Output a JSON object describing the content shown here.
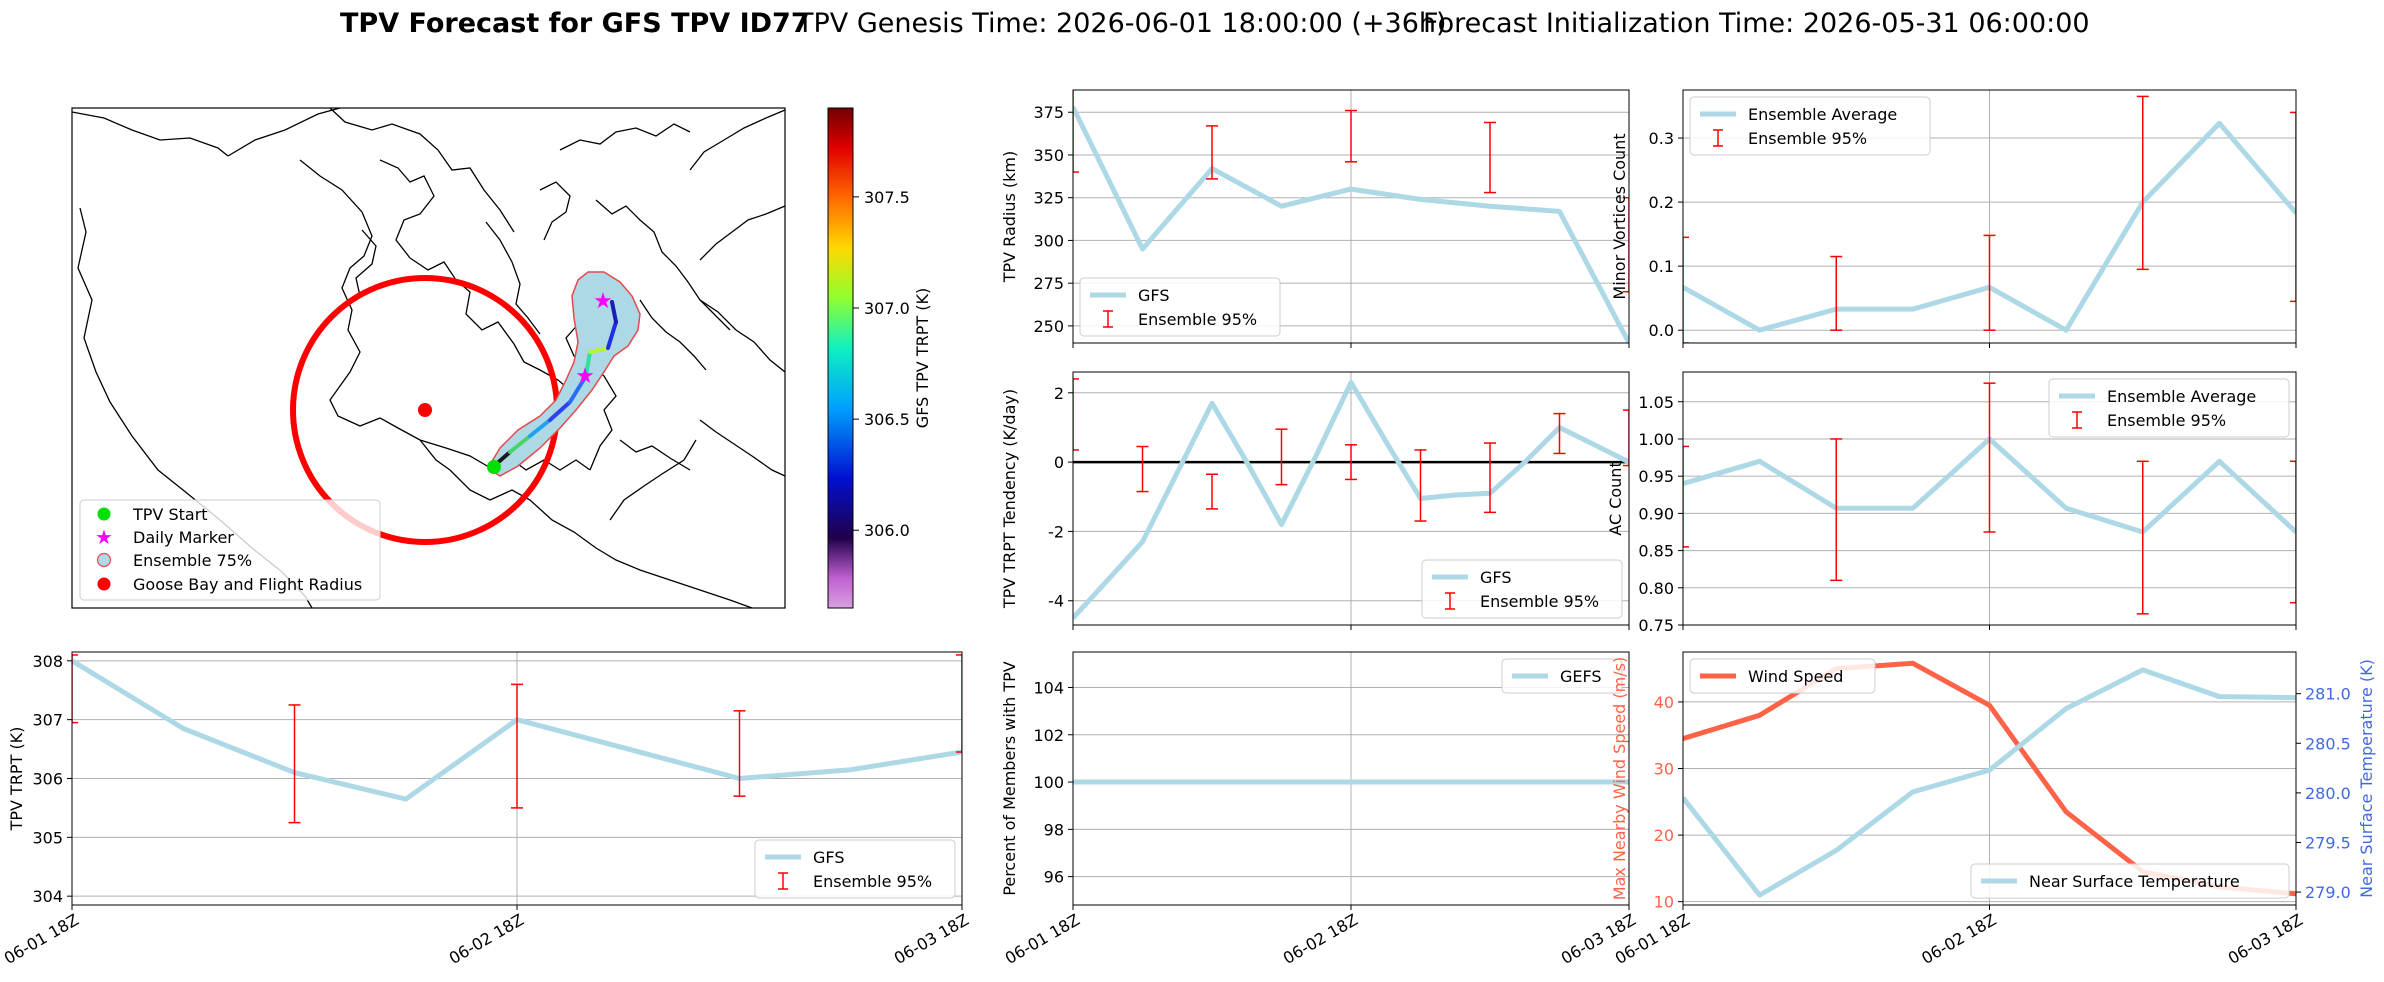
{
  "figure": {
    "title_bold": "TPV Forecast for GFS TPV ID77",
    "title_genesis": "TPV Genesis Time: 2026-06-01 18:00:00 (+36h)",
    "title_init": "Forecast Initialization Time: 2026-05-31 06:00:00"
  },
  "colors": {
    "gfs": "#add8e6",
    "ensemble": "#ff0000",
    "wind": "#ff6347",
    "temp_axis": "#4169e1",
    "grid": "#b0b0b0"
  },
  "map": {
    "legend": [
      "TPV Start",
      "Daily Marker",
      "Ensemble 75%",
      "Goose Bay and Flight Radius"
    ],
    "colorbar": {
      "label": "GFS TPV TRPT (K)",
      "min": 305.65,
      "max": 307.9,
      "ticks": [
        "306.0",
        "306.5",
        "307.0",
        "307.5"
      ],
      "tick_values": [
        306.0,
        306.5,
        307.0,
        307.5
      ]
    }
  },
  "chart_data": [
    {
      "id": "radius",
      "type": "line",
      "ylabel": "TPV Radius (km)",
      "x": [
        "2026-06-01 18Z",
        "2026-06-02 00Z",
        "2026-06-02 06Z",
        "2026-06-02 12Z",
        "2026-06-02 18Z",
        "2026-06-03 00Z",
        "2026-06-03 06Z",
        "2026-06-03 12Z",
        "2026-06-03 18Z"
      ],
      "ylim": [
        240,
        388
      ],
      "yticks": [
        250,
        275,
        300,
        325,
        350,
        375
      ],
      "series": [
        {
          "name": "GFS",
          "values": [
            378,
            295,
            342,
            320,
            330,
            324,
            320,
            317,
            240
          ]
        }
      ],
      "errorbars": {
        "name": "Ensemble 95%",
        "x_index": [
          0,
          2,
          4,
          6,
          8
        ],
        "low": [
          340,
          336,
          346,
          328,
          270
        ],
        "high": [
          390,
          367,
          376,
          369,
          325
        ]
      },
      "legend": "lower-left",
      "xticklabels": []
    },
    {
      "id": "minor",
      "type": "line",
      "ylabel": "Minor Vortices Count",
      "x": [
        "2026-06-01 18Z",
        "2026-06-02 00Z",
        "2026-06-02 06Z",
        "2026-06-02 12Z",
        "2026-06-02 18Z",
        "2026-06-03 00Z",
        "2026-06-03 06Z",
        "2026-06-03 12Z",
        "2026-06-03 18Z"
      ],
      "ylim": [
        -0.02,
        0.375
      ],
      "yticks": [
        0.0,
        0.1,
        0.2,
        0.3
      ],
      "ytick_labels": [
        "0.0",
        "0.1",
        "0.2",
        "0.3"
      ],
      "series": [
        {
          "name": "Ensemble Average",
          "values": [
            0.067,
            0.0,
            0.033,
            0.033,
            0.067,
            0.0,
            0.2,
            0.323,
            0.183
          ]
        }
      ],
      "errorbars": {
        "name": "Ensemble 95%",
        "x_index": [
          0,
          2,
          4,
          6,
          8
        ],
        "low": [
          -0.02,
          0.0,
          0.0,
          0.095,
          0.045
        ],
        "high": [
          0.145,
          0.115,
          0.148,
          0.365,
          0.34
        ]
      },
      "legend": "upper-left",
      "xticklabels": []
    },
    {
      "id": "tendency",
      "type": "line",
      "ylabel": "TPV TRPT Tendency (K/day)",
      "x": [
        "2026-06-01 18Z",
        "2026-06-01 21Z",
        "2026-06-02 00Z",
        "2026-06-02 03Z",
        "2026-06-02 06Z",
        "2026-06-02 09Z",
        "2026-06-02 12Z",
        "2026-06-02 15Z",
        "2026-06-02 18Z",
        "2026-06-02 21Z",
        "2026-06-03 00Z",
        "2026-06-03 03Z",
        "2026-06-03 06Z",
        "2026-06-03 09Z",
        "2026-06-03 12Z",
        "2026-06-03 15Z",
        "2026-06-03 18Z"
      ],
      "ylim": [
        -4.7,
        2.6
      ],
      "yticks": [
        -4,
        -2,
        0,
        2
      ],
      "series": [
        {
          "name": "GFS",
          "values": [
            -4.5,
            -3.4,
            -2.3,
            -0.3,
            1.7,
            0.0,
            -1.8,
            0.2,
            2.3,
            0.6,
            -1.05,
            -0.95,
            -0.9,
            0.0,
            1.0,
            0.5,
            0.0
          ]
        }
      ],
      "errorbars": {
        "name": "Ensemble 95%",
        "x_index": [
          0,
          2,
          4,
          6,
          8,
          10,
          12,
          14,
          16
        ],
        "low": [
          0.35,
          -0.85,
          -1.35,
          -0.65,
          -0.5,
          -1.7,
          -1.45,
          0.25,
          -0.1
        ],
        "high": [
          2.4,
          0.45,
          -0.35,
          0.95,
          0.5,
          0.35,
          0.55,
          1.4,
          1.5
        ]
      },
      "zero_line": true,
      "legend": "lower-right",
      "xticklabels": []
    },
    {
      "id": "ac",
      "type": "line",
      "ylabel": "AC Count",
      "x": [
        "2026-06-01 18Z",
        "2026-06-02 00Z",
        "2026-06-02 06Z",
        "2026-06-02 12Z",
        "2026-06-02 18Z",
        "2026-06-03 00Z",
        "2026-06-03 06Z",
        "2026-06-03 12Z",
        "2026-06-03 18Z"
      ],
      "ylim": [
        0.75,
        1.09
      ],
      "yticks": [
        0.75,
        0.8,
        0.85,
        0.9,
        0.95,
        1.0,
        1.05
      ],
      "ytick_labels": [
        "0.75",
        "0.80",
        "0.85",
        "0.90",
        "0.95",
        "1.00",
        "1.05"
      ],
      "series": [
        {
          "name": "Ensemble Average",
          "values": [
            0.94,
            0.97,
            0.907,
            0.907,
            1.0,
            0.907,
            0.875,
            0.97,
            0.875
          ]
        }
      ],
      "errorbars": {
        "name": "Ensemble 95%",
        "x_index": [
          0,
          2,
          4,
          6,
          8
        ],
        "low": [
          0.855,
          0.81,
          0.875,
          0.765,
          0.78
        ],
        "high": [
          0.99,
          1.0,
          1.075,
          0.97,
          0.97
        ]
      },
      "legend": "upper-right",
      "xticklabels": []
    },
    {
      "id": "trpt",
      "type": "line",
      "ylabel": "TPV TRPT (K)",
      "x": [
        "2026-06-01 18Z",
        "2026-06-02 00Z",
        "2026-06-02 06Z",
        "2026-06-02 12Z",
        "2026-06-02 18Z",
        "2026-06-03 00Z",
        "2026-06-03 06Z",
        "2026-06-03 12Z",
        "2026-06-03 18Z"
      ],
      "ylim": [
        303.85,
        308.15
      ],
      "yticks": [
        304,
        305,
        306,
        307,
        308
      ],
      "series": [
        {
          "name": "GFS",
          "values": [
            308.0,
            306.85,
            306.1,
            305.65,
            307.0,
            306.5,
            306.0,
            306.15,
            306.45
          ]
        }
      ],
      "errorbars": {
        "name": "Ensemble 95%",
        "x_index": [
          0,
          2,
          4,
          6,
          8
        ],
        "low": [
          306.95,
          305.25,
          305.5,
          305.7,
          306.45
        ],
        "high": [
          308.1,
          307.25,
          307.6,
          307.15,
          308.1
        ]
      },
      "legend": "lower-right",
      "xticklabels": [
        "06-01 18Z",
        "06-02 18Z",
        "06-03 18Z"
      ]
    },
    {
      "id": "percent",
      "type": "line",
      "ylabel": "Percent of Members with TPV",
      "x": [
        "2026-06-01 18Z",
        "2026-06-02 18Z",
        "2026-06-03 18Z"
      ],
      "ylim": [
        94.8,
        105.5
      ],
      "yticks": [
        96,
        98,
        100,
        102,
        104
      ],
      "series": [
        {
          "name": "GEFS",
          "values": [
            100,
            100,
            100
          ]
        }
      ],
      "legend": "upper-right",
      "xticklabels": [
        "06-01 18Z",
        "06-02 18Z",
        "06-03 18Z"
      ]
    },
    {
      "id": "wind",
      "type": "line",
      "ylabel": "Max Nearby Wind Speed (m/s)",
      "ylabel2": "Near Surface Temperature (K)",
      "x": [
        "2026-06-01 18Z",
        "2026-06-02 00Z",
        "2026-06-02 06Z",
        "2026-06-02 12Z",
        "2026-06-02 18Z",
        "2026-06-03 00Z",
        "2026-06-03 06Z",
        "2026-06-03 12Z",
        "2026-06-03 18Z"
      ],
      "ylim": [
        9.5,
        47.5
      ],
      "yticks": [
        10,
        20,
        30,
        40
      ],
      "y2lim": [
        278.87,
        281.42
      ],
      "y2ticks": [
        279.0,
        279.5,
        280.0,
        280.5,
        281.0
      ],
      "y2tick_labels": [
        "279.0",
        "279.5",
        "280.0",
        "280.5",
        "281.0"
      ],
      "series": [
        {
          "name": "Wind Speed",
          "axis": "left",
          "values": [
            34.5,
            38.0,
            45.0,
            45.8,
            39.5,
            23.5,
            14.5,
            12.2,
            11.2
          ]
        },
        {
          "name": "Near Surface Temperature",
          "axis": "right",
          "values": [
            279.95,
            278.97,
            279.42,
            280.01,
            280.23,
            280.85,
            281.24,
            280.97,
            280.96
          ]
        }
      ],
      "legend": "upper-left / lower-right",
      "xticklabels": [
        "06-01 18Z",
        "06-02 18Z",
        "06-03 18Z"
      ]
    }
  ]
}
